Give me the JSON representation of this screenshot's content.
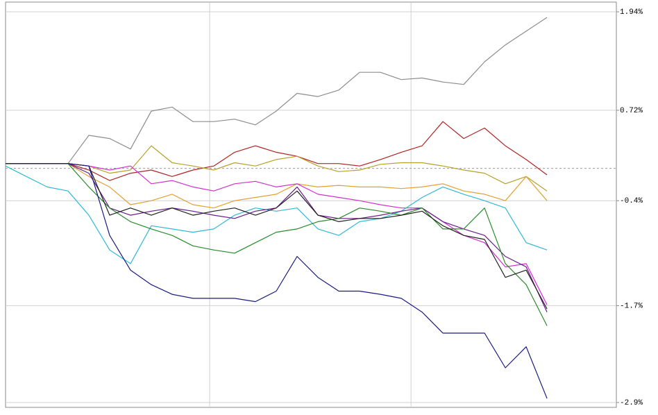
{
  "chart_data": {
    "type": "line",
    "x": [
      0,
      1,
      2,
      3,
      4,
      5,
      6,
      7,
      8,
      9,
      10,
      11,
      12,
      13,
      14,
      15,
      16,
      17,
      18,
      19,
      20,
      21,
      22,
      23,
      24,
      25,
      26
    ],
    "xlim": [
      0,
      29.33
    ],
    "xticks": [
      9.8,
      19.47
    ],
    "ylim": [
      -2.9,
      1.94
    ],
    "yticks": [
      {
        "value": -2.9,
        "label": "-2.9%"
      },
      {
        "value": -1.7,
        "label": "-1.7%"
      },
      {
        "value": -0.4,
        "label": "-0.4%"
      },
      {
        "value": 0.72,
        "label": "0.72%"
      },
      {
        "value": 1.94,
        "label": "1.94%"
      }
    ],
    "grid": true,
    "baseline": 0,
    "series": [
      {
        "color": "#8c8c8c",
        "values": [
          0.06,
          0.06,
          0.06,
          0.06,
          0.41,
          0.37,
          0.24,
          0.71,
          0.76,
          0.58,
          0.58,
          0.61,
          0.54,
          0.71,
          0.93,
          0.89,
          0.97,
          1.19,
          1.19,
          1.1,
          1.12,
          1.07,
          1.04,
          1.32,
          1.53,
          1.7,
          1.87
        ]
      },
      {
        "color": "#b22222",
        "values": [
          0.06,
          0.06,
          0.06,
          0.06,
          -0.02,
          -0.15,
          -0.06,
          -0.02,
          -0.1,
          -0.02,
          0.03,
          0.2,
          0.28,
          0.2,
          0.15,
          0.06,
          0.06,
          0.03,
          0.11,
          0.2,
          0.28,
          0.58,
          0.37,
          0.5,
          0.28,
          0.11,
          -0.08
        ]
      },
      {
        "color": "#b8a02a",
        "values": [
          0.06,
          0.06,
          0.06,
          0.06,
          0.03,
          -0.06,
          -0.02,
          0.28,
          0.07,
          0.03,
          -0.02,
          0.07,
          0.03,
          0.11,
          0.15,
          0.03,
          -0.04,
          -0.02,
          0.05,
          0.07,
          0.07,
          0.03,
          -0.02,
          -0.06,
          -0.19,
          -0.1,
          -0.28
        ]
      },
      {
        "color": "#e0a030",
        "values": [
          0.06,
          0.06,
          0.06,
          0.06,
          -0.1,
          -0.23,
          -0.45,
          -0.4,
          -0.32,
          -0.45,
          -0.49,
          -0.4,
          -0.36,
          -0.32,
          -0.19,
          -0.23,
          -0.21,
          -0.23,
          -0.23,
          -0.25,
          -0.23,
          -0.19,
          -0.28,
          -0.32,
          -0.4,
          -0.1,
          -0.4
        ]
      },
      {
        "color": "#d030d0",
        "values": [
          0.06,
          0.06,
          0.06,
          0.06,
          0.03,
          -0.02,
          0.03,
          -0.19,
          -0.15,
          -0.23,
          -0.28,
          -0.19,
          -0.16,
          -0.23,
          -0.19,
          -0.32,
          -0.36,
          -0.4,
          -0.45,
          -0.49,
          -0.49,
          -0.66,
          -0.83,
          -0.92,
          -1.22,
          -1.18,
          -1.69
        ]
      },
      {
        "color": "#30b8d8",
        "values": [
          0.03,
          -0.1,
          -0.23,
          -0.28,
          -0.58,
          -1.01,
          -1.18,
          -0.71,
          -0.75,
          -0.79,
          -0.75,
          -0.58,
          -0.49,
          -0.53,
          -0.49,
          -0.75,
          -0.83,
          -0.66,
          -0.62,
          -0.53,
          -0.36,
          -0.23,
          -0.32,
          -0.4,
          -0.49,
          -0.92,
          -1.01
        ]
      },
      {
        "color": "#6a1a8a",
        "values": [
          0.06,
          0.06,
          0.06,
          0.06,
          -0.06,
          -0.49,
          -0.58,
          -0.53,
          -0.49,
          -0.53,
          -0.58,
          -0.62,
          -0.53,
          -0.49,
          -0.23,
          -0.58,
          -0.62,
          -0.62,
          -0.58,
          -0.53,
          -0.49,
          -0.66,
          -0.75,
          -0.83,
          -1.09,
          -1.22,
          -1.78
        ]
      },
      {
        "color": "#2a8a2a",
        "values": [
          0.06,
          0.06,
          0.06,
          0.06,
          -0.23,
          -0.49,
          -0.66,
          -0.75,
          -0.83,
          -0.96,
          -1.01,
          -1.05,
          -0.92,
          -0.79,
          -0.75,
          -0.66,
          -0.62,
          -0.49,
          -0.53,
          -0.58,
          -0.49,
          -0.75,
          -0.75,
          -0.49,
          -1.18,
          -1.44,
          -1.95
        ]
      },
      {
        "color": "#202020",
        "values": [
          0.06,
          0.06,
          0.06,
          0.06,
          0.03,
          -0.58,
          -0.49,
          -0.58,
          -0.49,
          -0.58,
          -0.53,
          -0.49,
          -0.58,
          -0.49,
          -0.28,
          -0.58,
          -0.66,
          -0.62,
          -0.62,
          -0.58,
          -0.53,
          -0.71,
          -0.83,
          -0.88,
          -1.35,
          -1.26,
          -1.74
        ]
      },
      {
        "color": "#1a1a80",
        "values": [
          0.06,
          0.06,
          0.06,
          0.06,
          0.03,
          -0.83,
          -1.26,
          -1.44,
          -1.56,
          -1.61,
          -1.61,
          -1.61,
          -1.65,
          -1.52,
          -1.09,
          -1.35,
          -1.52,
          -1.52,
          -1.56,
          -1.61,
          -1.78,
          -2.04,
          -2.04,
          -2.04,
          -2.47,
          -2.21,
          -2.85
        ]
      }
    ]
  }
}
